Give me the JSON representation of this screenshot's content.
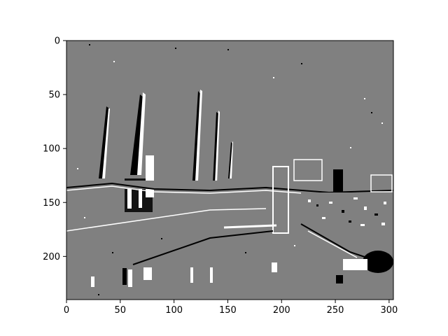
{
  "figure": {
    "type": "image-with-axes",
    "description_colors": {
      "background": "#808080",
      "white": "#ffffff",
      "black": "#000000"
    },
    "x_axis": {
      "range": [
        0,
        304
      ],
      "ticks": [
        0,
        50,
        100,
        150,
        200,
        250,
        300
      ]
    },
    "y_axis": {
      "range": [
        0,
        240
      ],
      "ticks": [
        0,
        50,
        100,
        150,
        200
      ],
      "inverted": true
    }
  }
}
